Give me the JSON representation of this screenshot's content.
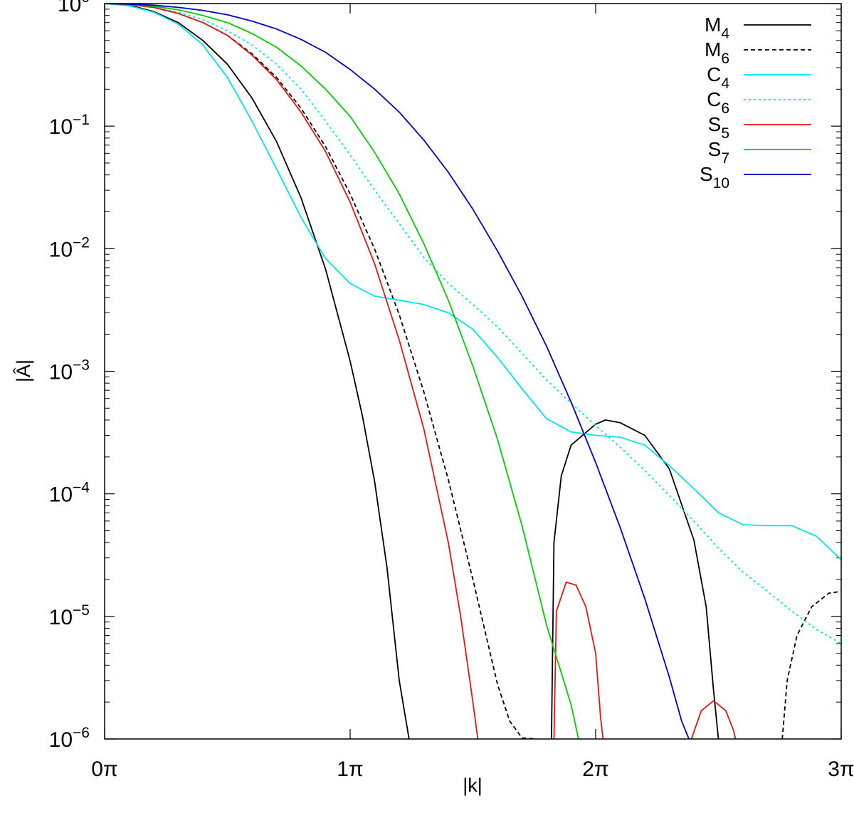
{
  "chart_data": {
    "type": "line",
    "xlabel": "|k|",
    "ylabel": "|Â|",
    "x_scale": "linear",
    "y_scale": "log",
    "xlim_pi": [
      0,
      3
    ],
    "ylim": [
      1e-06,
      1
    ],
    "x_ticks": [
      {
        "value_pi": 0,
        "label": "0π"
      },
      {
        "value_pi": 1,
        "label": "1π"
      },
      {
        "value_pi": 2,
        "label": "2π"
      },
      {
        "value_pi": 3,
        "label": "3π"
      }
    ],
    "y_ticks": [
      {
        "exp": 0,
        "base": "10",
        "sup": "0"
      },
      {
        "exp": -1,
        "base": "10",
        "sup": "−1"
      },
      {
        "exp": -2,
        "base": "10",
        "sup": "−2"
      },
      {
        "exp": -3,
        "base": "10",
        "sup": "−3"
      },
      {
        "exp": -4,
        "base": "10",
        "sup": "−4"
      },
      {
        "exp": -5,
        "base": "10",
        "sup": "−5"
      },
      {
        "exp": -6,
        "base": "10",
        "sup": "−6"
      }
    ],
    "grid": false,
    "legend_position": "top-right",
    "x_unit": "π",
    "series": [
      {
        "name": "M",
        "sub": "4",
        "color": "#000000",
        "dash": "solid",
        "segments": [
          [
            [
              0,
              1
            ],
            [
              0.1,
              0.97
            ],
            [
              0.2,
              0.86
            ],
            [
              0.3,
              0.7
            ],
            [
              0.4,
              0.5
            ],
            [
              0.5,
              0.32
            ],
            [
              0.6,
              0.17
            ],
            [
              0.7,
              0.075
            ],
            [
              0.8,
              0.026
            ],
            [
              0.9,
              0.0068
            ],
            [
              1.0,
              0.00121
            ],
            [
              1.05,
              0.00043
            ],
            [
              1.1,
              0.000125
            ],
            [
              1.15,
              2.5e-05
            ],
            [
              1.2,
              3e-06
            ],
            [
              1.24,
              1e-06
            ]
          ],
          [
            [
              1.82,
              1e-06
            ],
            [
              1.83,
              4e-05
            ],
            [
              1.86,
              0.00014
            ],
            [
              1.9,
              0.00025
            ],
            [
              2.0,
              0.00037
            ],
            [
              2.04,
              0.0004
            ],
            [
              2.1,
              0.00038
            ],
            [
              2.2,
              0.0003
            ],
            [
              2.3,
              0.00016
            ],
            [
              2.4,
              4.2e-05
            ],
            [
              2.45,
              1.2e-05
            ],
            [
              2.48,
              2.5e-06
            ],
            [
              2.5,
              1e-06
            ]
          ]
        ]
      },
      {
        "name": "M",
        "sub": "6",
        "color": "#000000",
        "dash": "dashed",
        "segments": [
          [
            [
              0,
              1
            ],
            [
              0.1,
              0.98
            ],
            [
              0.2,
              0.93
            ],
            [
              0.3,
              0.83
            ],
            [
              0.4,
              0.7
            ],
            [
              0.5,
              0.55
            ],
            [
              0.6,
              0.39
            ],
            [
              0.7,
              0.25
            ],
            [
              0.8,
              0.14
            ],
            [
              0.9,
              0.068
            ],
            [
              1.0,
              0.028
            ],
            [
              1.1,
              0.0099
            ],
            [
              1.2,
              0.0029
            ],
            [
              1.3,
              0.00068
            ],
            [
              1.4,
              0.00013
            ],
            [
              1.5,
              2e-05
            ],
            [
              1.6,
              2.8e-06
            ],
            [
              1.65,
              1.4e-06
            ],
            [
              1.7,
              1.02e-06
            ],
            [
              1.76,
              1e-06
            ]
          ],
          [
            [
              2.76,
              1e-06
            ],
            [
              2.78,
              3e-06
            ],
            [
              2.82,
              7e-06
            ],
            [
              2.88,
              1.2e-05
            ],
            [
              2.95,
              1.55e-05
            ],
            [
              3.0,
              1.6e-05
            ]
          ]
        ]
      },
      {
        "name": "C",
        "sub": "4",
        "color": "#00e5ee",
        "dash": "solid",
        "segments": [
          [
            [
              0,
              1
            ],
            [
              0.1,
              0.96
            ],
            [
              0.2,
              0.85
            ],
            [
              0.3,
              0.68
            ],
            [
              0.4,
              0.46
            ],
            [
              0.5,
              0.25
            ],
            [
              0.6,
              0.11
            ],
            [
              0.7,
              0.045
            ],
            [
              0.8,
              0.018
            ],
            [
              0.9,
              0.0083
            ],
            [
              1.0,
              0.0052
            ],
            [
              1.1,
              0.0041
            ],
            [
              1.2,
              0.0038
            ],
            [
              1.3,
              0.0035
            ],
            [
              1.4,
              0.003
            ],
            [
              1.5,
              0.0022
            ],
            [
              1.6,
              0.0013
            ],
            [
              1.7,
              0.00072
            ],
            [
              1.8,
              0.00041
            ],
            [
              1.9,
              0.00032
            ],
            [
              2.0,
              0.0003
            ],
            [
              2.1,
              0.00029
            ],
            [
              2.2,
              0.00025
            ],
            [
              2.3,
              0.00017
            ],
            [
              2.4,
              0.00011
            ],
            [
              2.5,
              7e-05
            ],
            [
              2.6,
              5.6e-05
            ],
            [
              2.7,
              5.5e-05
            ],
            [
              2.8,
              5.5e-05
            ],
            [
              2.9,
              4.5e-05
            ],
            [
              3.0,
              2.9e-05
            ]
          ]
        ]
      },
      {
        "name": "C",
        "sub": "6",
        "color": "#00e5ee",
        "dash": "dotted",
        "segments": [
          [
            [
              0,
              1
            ],
            [
              0.1,
              0.98
            ],
            [
              0.2,
              0.93
            ],
            [
              0.3,
              0.85
            ],
            [
              0.4,
              0.74
            ],
            [
              0.5,
              0.6
            ],
            [
              0.6,
              0.46
            ],
            [
              0.7,
              0.32
            ],
            [
              0.8,
              0.2
            ],
            [
              0.9,
              0.11
            ],
            [
              1.0,
              0.058
            ],
            [
              1.1,
              0.03
            ],
            [
              1.2,
              0.016
            ],
            [
              1.3,
              0.0085
            ],
            [
              1.4,
              0.0052
            ],
            [
              1.5,
              0.0035
            ],
            [
              1.6,
              0.0023
            ],
            [
              1.7,
              0.0014
            ],
            [
              1.8,
              0.00085
            ],
            [
              1.9,
              0.00055
            ],
            [
              2.0,
              0.00036
            ],
            [
              2.1,
              0.00024
            ],
            [
              2.2,
              0.000155
            ],
            [
              2.3,
              9.7e-05
            ],
            [
              2.4,
              6e-05
            ],
            [
              2.5,
              3.6e-05
            ],
            [
              2.6,
              2.3e-05
            ],
            [
              2.7,
              1.6e-05
            ],
            [
              2.8,
              1.1e-05
            ],
            [
              2.9,
              7.8e-06
            ],
            [
              3.0,
              6e-06
            ]
          ]
        ]
      },
      {
        "name": "S",
        "sub": "5",
        "color": "#e8160c",
        "dash": "solid",
        "segments": [
          [
            [
              0,
              1
            ],
            [
              0.1,
              0.98
            ],
            [
              0.2,
              0.93
            ],
            [
              0.3,
              0.83
            ],
            [
              0.4,
              0.7
            ],
            [
              0.5,
              0.55
            ],
            [
              0.6,
              0.38
            ],
            [
              0.7,
              0.24
            ],
            [
              0.8,
              0.13
            ],
            [
              0.9,
              0.062
            ],
            [
              1.0,
              0.024
            ],
            [
              1.1,
              0.0075
            ],
            [
              1.2,
              0.0018
            ],
            [
              1.3,
              0.00034
            ],
            [
              1.4,
              4e-05
            ],
            [
              1.45,
              1e-05
            ],
            [
              1.5,
              2e-06
            ],
            [
              1.52,
              1e-06
            ]
          ],
          [
            [
              1.83,
              1e-06
            ],
            [
              1.84,
              1.1e-05
            ],
            [
              1.88,
              1.9e-05
            ],
            [
              1.92,
              1.8e-05
            ],
            [
              1.96,
              1.2e-05
            ],
            [
              2.0,
              5e-06
            ],
            [
              2.02,
              1.5e-06
            ],
            [
              2.03,
              1e-06
            ]
          ],
          [
            [
              2.39,
              1e-06
            ],
            [
              2.43,
              1.7e-06
            ],
            [
              2.48,
              2.05e-06
            ],
            [
              2.53,
              1.7e-06
            ],
            [
              2.56,
              1.2e-06
            ],
            [
              2.57,
              1e-06
            ]
          ]
        ]
      },
      {
        "name": "S",
        "sub": "7",
        "color": "#00d000",
        "dash": "solid",
        "segments": [
          [
            [
              0,
              1
            ],
            [
              0.1,
              0.985
            ],
            [
              0.2,
              0.95
            ],
            [
              0.3,
              0.89
            ],
            [
              0.4,
              0.8
            ],
            [
              0.5,
              0.7
            ],
            [
              0.6,
              0.57
            ],
            [
              0.7,
              0.44
            ],
            [
              0.8,
              0.31
            ],
            [
              0.9,
              0.2
            ],
            [
              1.0,
              0.12
            ],
            [
              1.1,
              0.061
            ],
            [
              1.2,
              0.028
            ],
            [
              1.3,
              0.011
            ],
            [
              1.4,
              0.0038
            ],
            [
              1.5,
              0.0011
            ],
            [
              1.6,
              0.00028
            ],
            [
              1.7,
              5.5e-05
            ],
            [
              1.8,
              8.5e-06
            ],
            [
              1.9,
              1.9e-06
            ],
            [
              1.93,
              1e-06
            ]
          ]
        ]
      },
      {
        "name": "S",
        "sub": "10",
        "color": "#0000cd",
        "dash": "solid",
        "segments": [
          [
            [
              0,
              1
            ],
            [
              0.1,
              0.99
            ],
            [
              0.2,
              0.97
            ],
            [
              0.3,
              0.93
            ],
            [
              0.4,
              0.88
            ],
            [
              0.5,
              0.81
            ],
            [
              0.6,
              0.72
            ],
            [
              0.7,
              0.62
            ],
            [
              0.8,
              0.51
            ],
            [
              0.9,
              0.4
            ],
            [
              1.0,
              0.29
            ],
            [
              1.1,
              0.2
            ],
            [
              1.2,
              0.13
            ],
            [
              1.3,
              0.077
            ],
            [
              1.4,
              0.042
            ],
            [
              1.5,
              0.021
            ],
            [
              1.6,
              0.0096
            ],
            [
              1.7,
              0.0041
            ],
            [
              1.8,
              0.0016
            ],
            [
              1.9,
              0.00056
            ],
            [
              2.0,
              0.00018
            ],
            [
              2.1,
              5.3e-05
            ],
            [
              2.2,
              1.4e-05
            ],
            [
              2.3,
              3.2e-06
            ],
            [
              2.35,
              1.4e-06
            ],
            [
              2.38,
              1e-06
            ]
          ]
        ]
      }
    ]
  }
}
